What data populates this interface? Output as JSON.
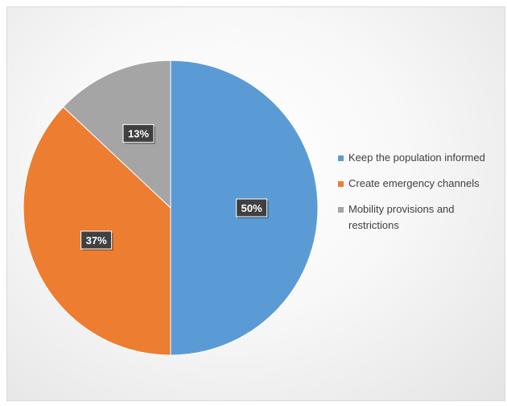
{
  "chart_data": {
    "type": "pie",
    "categories": [
      "Keep the population informed",
      "Create emergency channels",
      "Mobility provisions and restrictions"
    ],
    "values": [
      50,
      37,
      13
    ],
    "labels": [
      "50%",
      "37%",
      "13%"
    ],
    "colors": [
      "#5b9bd5",
      "#ed7d31",
      "#a5a5a5"
    ],
    "legend_position": "right"
  }
}
